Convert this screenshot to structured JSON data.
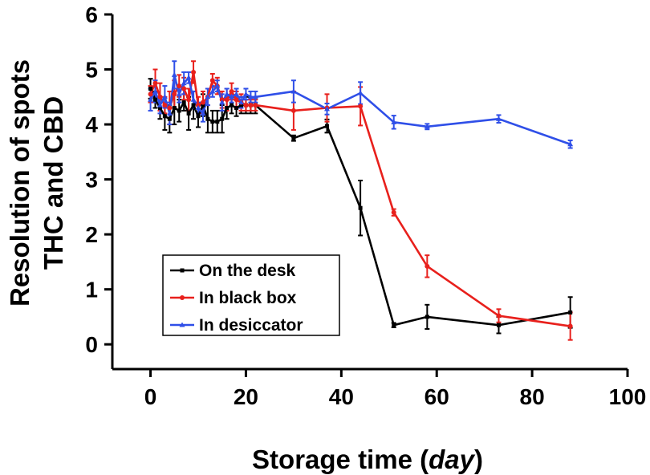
{
  "chart_data": {
    "type": "line",
    "title": "",
    "xlabel_prefix": "Storage time (",
    "xlabel_unit": "day",
    "xlabel_suffix": ")",
    "ylabel_line1": "Resolution of spots",
    "ylabel_line2": "THC and CBD",
    "xlim": [
      -8,
      100
    ],
    "ylim": [
      -0.45,
      6
    ],
    "xticks": [
      0,
      20,
      40,
      60,
      80,
      100
    ],
    "yticks": [
      0,
      1,
      2,
      3,
      4,
      5,
      6
    ],
    "grid": false,
    "legend_position": "bottom-left",
    "series": [
      {
        "name": "On the desk",
        "color": "#000000",
        "marker": "square",
        "x": [
          0,
          1,
          2,
          3,
          4,
          5,
          6,
          7,
          8,
          9,
          10,
          11,
          12,
          13,
          14,
          15,
          16,
          17,
          18,
          19,
          20,
          21,
          22,
          30,
          37,
          44,
          51,
          58,
          73,
          88
        ],
        "y": [
          4.65,
          4.45,
          4.3,
          4.15,
          4.1,
          4.3,
          4.25,
          4.4,
          4.2,
          4.35,
          4.15,
          4.35,
          4.1,
          4.05,
          4.05,
          4.1,
          4.3,
          4.35,
          4.3,
          4.35,
          4.35,
          4.35,
          4.35,
          3.75,
          3.97,
          2.48,
          0.35,
          0.5,
          0.35,
          0.58
        ],
        "err": [
          0.18,
          0.15,
          0.2,
          0.25,
          0.25,
          0.3,
          0.2,
          0.15,
          0.3,
          0.25,
          0.2,
          0.2,
          0.25,
          0.2,
          0.2,
          0.25,
          0.2,
          0.15,
          0.15,
          0.15,
          0.15,
          0.15,
          0.15,
          0.05,
          0.12,
          0.5,
          0.04,
          0.22,
          0.15,
          0.28
        ]
      },
      {
        "name": "In black box",
        "color": "#e8201c",
        "marker": "circle",
        "x": [
          0,
          1,
          2,
          3,
          4,
          5,
          6,
          7,
          8,
          9,
          10,
          11,
          12,
          13,
          14,
          15,
          16,
          17,
          18,
          19,
          20,
          21,
          22,
          30,
          37,
          44,
          51,
          58,
          73,
          88
        ],
        "y": [
          4.55,
          4.75,
          4.5,
          4.35,
          4.3,
          4.55,
          4.7,
          4.65,
          4.45,
          4.95,
          4.35,
          4.4,
          4.5,
          4.8,
          4.7,
          4.45,
          4.45,
          4.6,
          4.45,
          4.4,
          4.35,
          4.35,
          4.35,
          4.25,
          4.3,
          4.33,
          2.4,
          1.42,
          0.52,
          0.33
        ],
        "err": [
          0.15,
          0.25,
          0.25,
          0.15,
          0.3,
          0.25,
          0.2,
          0.2,
          0.2,
          0.2,
          0.15,
          0.2,
          0.15,
          0.12,
          0.15,
          0.15,
          0.2,
          0.15,
          0.15,
          0.15,
          0.1,
          0.1,
          0.1,
          0.35,
          0.25,
          0.35,
          0.06,
          0.2,
          0.12,
          0.25
        ]
      },
      {
        "name": "In desiccator",
        "color": "#2f4fe8",
        "marker": "triangle",
        "x": [
          0,
          1,
          2,
          3,
          4,
          5,
          6,
          7,
          8,
          9,
          10,
          11,
          12,
          13,
          14,
          15,
          16,
          17,
          18,
          19,
          20,
          21,
          22,
          30,
          37,
          44,
          51,
          58,
          73,
          88
        ],
        "y": [
          4.45,
          4.6,
          4.35,
          4.5,
          4.2,
          4.9,
          4.55,
          4.75,
          4.85,
          4.45,
          4.3,
          4.2,
          4.5,
          4.6,
          4.7,
          4.4,
          4.55,
          4.5,
          4.55,
          4.4,
          4.55,
          4.5,
          4.5,
          4.6,
          4.28,
          4.57,
          4.04,
          3.96,
          4.1,
          3.64
        ],
        "err": [
          0.2,
          0.2,
          0.15,
          0.2,
          0.2,
          0.25,
          0.15,
          0.2,
          0.1,
          0.15,
          0.1,
          0.15,
          0.15,
          0.1,
          0.1,
          0.15,
          0.1,
          0.1,
          0.1,
          0.1,
          0.1,
          0.1,
          0.1,
          0.2,
          0.1,
          0.2,
          0.12,
          0.05,
          0.07,
          0.07
        ]
      }
    ]
  }
}
